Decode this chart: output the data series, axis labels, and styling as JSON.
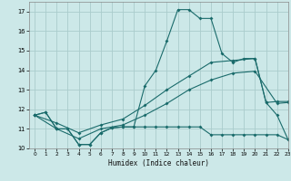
{
  "bg_color": "#cce8e8",
  "grid_color": "#aacccc",
  "line_color": "#1a6b6b",
  "xlabel": "Humidex (Indice chaleur)",
  "xlim": [
    -0.5,
    23
  ],
  "ylim": [
    10,
    17.5
  ],
  "yticks": [
    10,
    11,
    12,
    13,
    14,
    15,
    16,
    17
  ],
  "xticks": [
    0,
    1,
    2,
    3,
    4,
    5,
    6,
    7,
    8,
    9,
    10,
    11,
    12,
    13,
    14,
    15,
    16,
    17,
    18,
    19,
    20,
    21,
    22,
    23
  ],
  "curve_peaked_x": [
    0,
    1,
    2,
    3,
    4,
    5,
    6,
    7,
    8,
    9,
    10,
    11,
    12,
    13,
    14,
    15,
    16,
    17,
    18,
    19,
    20,
    21,
    22,
    23
  ],
  "curve_peaked_y": [
    11.7,
    11.85,
    11.0,
    11.0,
    10.2,
    10.2,
    10.8,
    11.05,
    11.1,
    11.1,
    13.2,
    14.0,
    15.5,
    17.1,
    17.1,
    16.65,
    16.65,
    14.85,
    14.4,
    14.6,
    14.6,
    12.35,
    11.7,
    10.45
  ],
  "curve_flat_x": [
    0,
    1,
    2,
    3,
    4,
    5,
    6,
    7,
    8,
    9,
    10,
    11,
    12,
    13,
    14,
    15,
    16,
    17,
    18,
    19,
    20,
    21,
    22,
    23
  ],
  "curve_flat_y": [
    11.7,
    11.85,
    11.0,
    11.0,
    10.2,
    10.2,
    10.8,
    11.05,
    11.1,
    11.1,
    11.1,
    11.1,
    11.1,
    11.1,
    11.1,
    11.1,
    10.7,
    10.7,
    10.7,
    10.7,
    10.7,
    10.7,
    10.7,
    10.45
  ],
  "curve_upper_diag_x": [
    0,
    2,
    4,
    6,
    8,
    10,
    12,
    14,
    16,
    18,
    20,
    21,
    22,
    23
  ],
  "curve_upper_diag_y": [
    11.7,
    11.3,
    10.8,
    11.2,
    11.5,
    12.2,
    13.0,
    13.7,
    14.4,
    14.5,
    14.6,
    12.35,
    12.4,
    12.4
  ],
  "curve_lower_diag_x": [
    0,
    2,
    4,
    6,
    8,
    10,
    12,
    14,
    16,
    18,
    20,
    22,
    23
  ],
  "curve_lower_diag_y": [
    11.7,
    11.0,
    10.5,
    11.0,
    11.2,
    11.7,
    12.3,
    13.0,
    13.5,
    13.85,
    13.95,
    12.3,
    12.35
  ]
}
